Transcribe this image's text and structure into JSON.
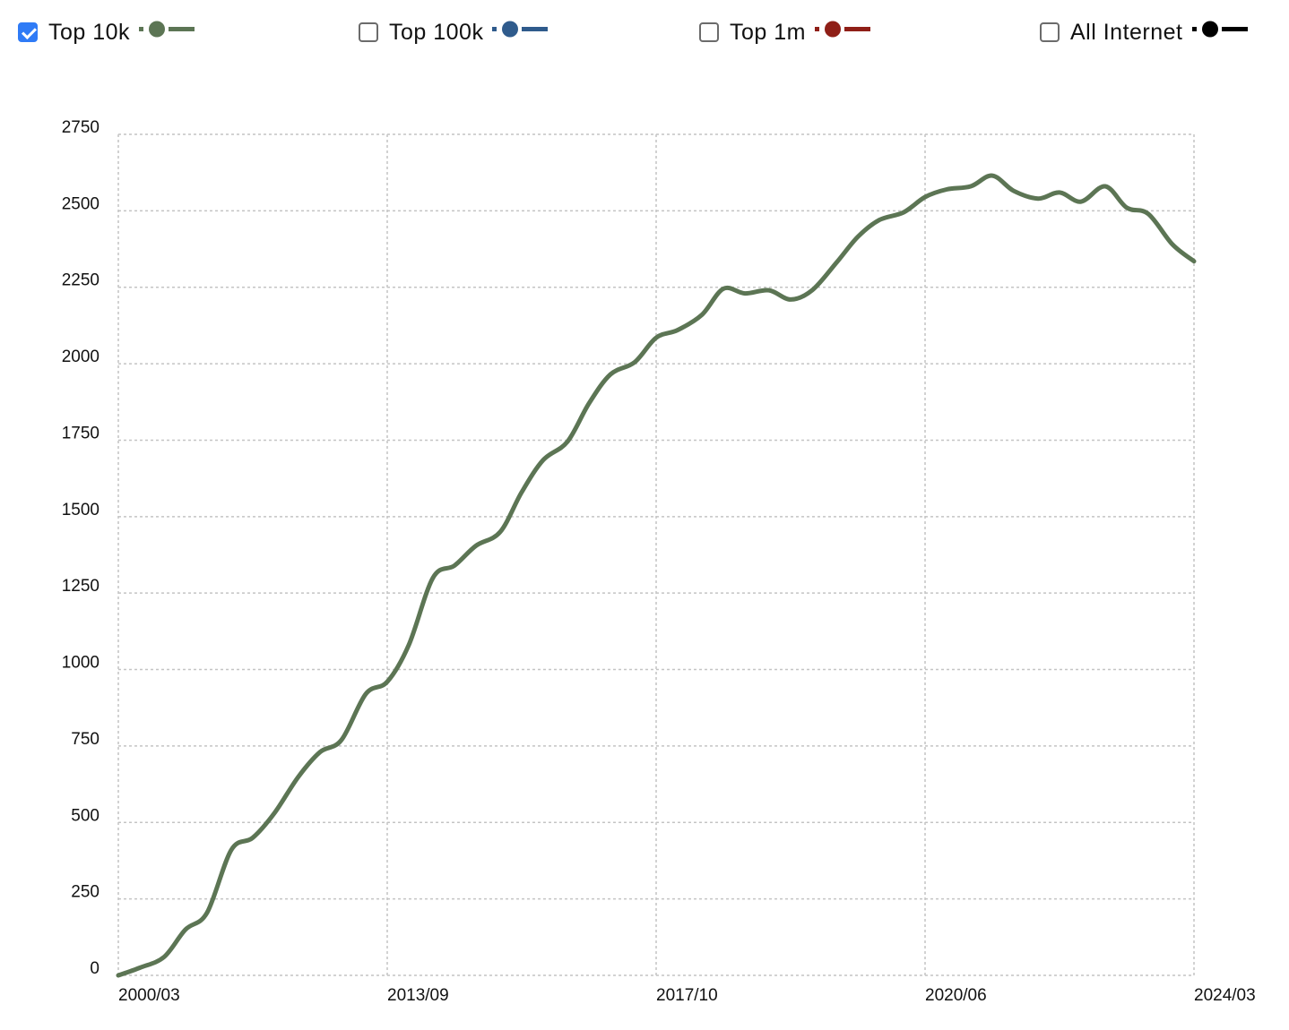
{
  "legend": [
    {
      "label": "Top 10k",
      "checked": true,
      "color": "#5c7554"
    },
    {
      "label": "Top 100k",
      "checked": false,
      "color": "#2f5b8c"
    },
    {
      "label": "Top 1m",
      "checked": false,
      "color": "#8f1f17"
    },
    {
      "label": "All Internet",
      "checked": false,
      "color": "#000000"
    }
  ],
  "chart_data": {
    "type": "line",
    "title": "",
    "xlabel": "",
    "ylabel": "",
    "ylim": [
      0,
      2750
    ],
    "yticks": [
      "0",
      "250",
      "500",
      "750",
      "1000",
      "1250",
      "1500",
      "1750",
      "2000",
      "2250",
      "2500",
      "2750"
    ],
    "xticks": [
      "2000/03",
      "2013/09",
      "2017/10",
      "2020/06",
      "2024/03"
    ],
    "grid": true,
    "legend_position": "top",
    "series": [
      {
        "name": "Top 10k",
        "color": "#5c7554",
        "x_index": [
          0,
          0.08,
          0.17,
          0.25,
          0.33,
          0.42,
          0.5,
          0.58,
          0.67,
          0.75,
          0.83,
          0.92,
          1.0,
          1.08,
          1.17,
          1.25,
          1.33,
          1.42,
          1.5,
          1.58,
          1.67,
          1.75,
          1.83,
          1.92,
          2.0,
          2.08,
          2.17,
          2.25,
          2.33,
          2.42,
          2.5,
          2.58,
          2.67,
          2.75,
          2.83,
          2.92,
          3.0,
          3.08,
          3.17,
          3.25,
          3.33,
          3.42,
          3.5,
          3.58,
          3.67,
          3.75,
          3.83,
          3.92,
          4.0
        ],
        "values": [
          0,
          25,
          60,
          150,
          205,
          410,
          450,
          530,
          650,
          730,
          770,
          920,
          960,
          1080,
          1300,
          1340,
          1405,
          1450,
          1580,
          1685,
          1745,
          1870,
          1965,
          2005,
          2085,
          2110,
          2160,
          2245,
          2230,
          2240,
          2210,
          2240,
          2330,
          2415,
          2470,
          2495,
          2545,
          2570,
          2580,
          2615,
          2565,
          2540,
          2560,
          2530,
          2580,
          2510,
          2490,
          2390,
          2335
        ]
      }
    ]
  }
}
